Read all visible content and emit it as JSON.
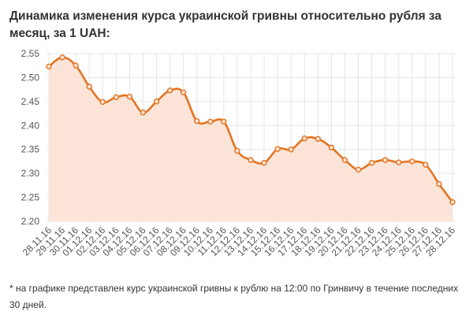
{
  "title_line1": "Динамика изменения курса украинской гривны относительно рубля за",
  "title_line2": "месяц, за 1 UAH:",
  "footnote": "* на графике представлен курс украинской гривны к рублю на 12:00 по Гринвичу в течение последних 30 дней.",
  "colors": {
    "line": "#e37422",
    "area": "#fbe1d1",
    "grid": "#e6e6e6",
    "point_fill": "#fbe1d1"
  },
  "chart_data": {
    "type": "area",
    "categories": [
      "28.11.16",
      "29.11.16",
      "30.11.16",
      "01.12.16",
      "02.12.16",
      "03.12.16",
      "04.12.16",
      "05.12.16",
      "06.12.16",
      "07.12.16",
      "08.12.16",
      "09.12.16",
      "10.12.16",
      "11.12.16",
      "12.12.16",
      "13.12.16",
      "14.12.16",
      "15.12.16",
      "16.12.16",
      "17.12.16",
      "18.12.16",
      "19.12.16",
      "20.12.16",
      "21.12.16",
      "22.12.16",
      "23.12.16",
      "24.12.16",
      "25.12.16",
      "26.12.16",
      "27.12.16",
      "28.12.16"
    ],
    "values": [
      2.523,
      2.542,
      2.525,
      2.481,
      2.449,
      2.459,
      2.46,
      2.427,
      2.45,
      2.473,
      2.469,
      2.409,
      2.408,
      2.408,
      2.347,
      2.328,
      2.322,
      2.351,
      2.35,
      2.373,
      2.372,
      2.354,
      2.328,
      2.308,
      2.322,
      2.328,
      2.323,
      2.325,
      2.318,
      2.278,
      2.24
    ],
    "yticks": [
      "2.55",
      "2.50",
      "2.45",
      "2.40",
      "2.35",
      "2.30",
      "2.25",
      "2.20"
    ],
    "ylim": [
      2.2,
      2.55
    ],
    "grid": true
  }
}
